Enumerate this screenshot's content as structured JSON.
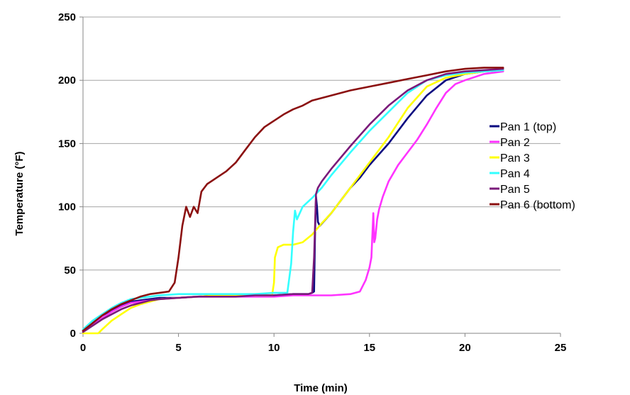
{
  "chart_data": {
    "type": "line",
    "title": "",
    "xlabel": "Time (min)",
    "ylabel": "Temperature (°F)",
    "xlim": [
      0,
      25
    ],
    "ylim": [
      0,
      250
    ],
    "xticks": [
      0,
      5,
      10,
      15,
      20,
      25
    ],
    "yticks": [
      0,
      50,
      100,
      150,
      200,
      250
    ],
    "grid": "horizontal",
    "legend": "right",
    "series": [
      {
        "name": "Pan 1 (top)",
        "color": "#0a0a80",
        "x": [
          0,
          0.5,
          1,
          1.5,
          2,
          2.5,
          3,
          3.5,
          4,
          5,
          6,
          7,
          8,
          9,
          10,
          11,
          11.8,
          12.0,
          12.1,
          12.15,
          12.2,
          12.25,
          12.3,
          12.4,
          13,
          13.5,
          14,
          14.5,
          15,
          16,
          17,
          18,
          19,
          20,
          21,
          22
        ],
        "y": [
          2,
          8,
          14,
          18,
          22,
          25,
          26,
          27,
          28,
          28,
          29,
          30,
          30,
          30,
          30,
          31,
          31,
          32,
          33,
          80,
          108,
          100,
          88,
          85,
          95,
          105,
          115,
          123,
          133,
          150,
          170,
          188,
          200,
          205,
          207,
          208
        ]
      },
      {
        "name": "Pan 2",
        "color": "#ff33ff",
        "x": [
          0,
          0.5,
          1,
          1.5,
          2,
          2.5,
          3,
          3.5,
          4,
          5,
          6,
          7,
          8,
          9,
          10,
          11,
          12,
          13,
          14,
          14.5,
          14.8,
          15.0,
          15.1,
          15.2,
          15.25,
          15.3,
          15.4,
          15.5,
          15.7,
          16,
          16.5,
          17,
          17.5,
          18,
          18.5,
          19,
          19.5,
          20,
          21,
          22
        ],
        "y": [
          2,
          7,
          12,
          17,
          21,
          24,
          25,
          26,
          27,
          28,
          29,
          29,
          29,
          29,
          29,
          30,
          30,
          30,
          31,
          33,
          42,
          52,
          60,
          95,
          72,
          75,
          90,
          98,
          108,
          120,
          133,
          143,
          153,
          165,
          178,
          190,
          197,
          200,
          205,
          207
        ]
      },
      {
        "name": "Pan 3",
        "color": "#ffff00",
        "x": [
          0,
          0.5,
          0.8,
          1,
          1.5,
          2,
          2.5,
          3,
          3.5,
          4,
          5,
          6,
          7,
          8,
          9,
          9.9,
          10.0,
          10.05,
          10.2,
          10.5,
          11,
          11.5,
          12,
          12.5,
          13,
          14,
          15,
          16,
          17,
          18,
          19,
          20,
          21,
          22
        ],
        "y": [
          0,
          0,
          0,
          3,
          10,
          15,
          20,
          23,
          25,
          27,
          28,
          29,
          30,
          30,
          30,
          30,
          40,
          60,
          68,
          70,
          70,
          72,
          78,
          87,
          95,
          115,
          135,
          155,
          178,
          195,
          202,
          205,
          207,
          208
        ]
      },
      {
        "name": "Pan 4",
        "color": "#33ffff",
        "x": [
          0,
          0.5,
          1,
          1.5,
          2,
          2.5,
          3,
          3.5,
          4,
          5,
          6,
          7,
          8,
          9,
          10,
          10.7,
          10.9,
          11.0,
          11.1,
          11.2,
          11.5,
          12,
          12.5,
          13,
          14,
          15,
          16,
          17,
          18,
          19,
          20,
          21,
          22
        ],
        "y": [
          3,
          10,
          15,
          20,
          24,
          27,
          28,
          29,
          30,
          31,
          31,
          31,
          31,
          31,
          32,
          32,
          55,
          80,
          97,
          90,
          100,
          107,
          115,
          125,
          143,
          160,
          175,
          190,
          200,
          204,
          206,
          207,
          208
        ]
      },
      {
        "name": "Pan 5",
        "color": "#7a1a7a",
        "x": [
          0,
          0.5,
          1,
          1.5,
          2,
          2.5,
          3,
          3.5,
          4,
          5,
          6,
          7,
          8,
          9,
          10,
          11,
          11.8,
          12.0,
          12.1,
          12.2,
          12.3,
          12.5,
          13,
          14,
          15,
          16,
          17,
          18,
          19,
          20,
          21,
          22
        ],
        "y": [
          1,
          6,
          11,
          15,
          19,
          22,
          24,
          26,
          27,
          28,
          29,
          29,
          29,
          30,
          30,
          31,
          31,
          32,
          60,
          110,
          115,
          120,
          130,
          148,
          165,
          180,
          192,
          200,
          205,
          207,
          208,
          209
        ]
      },
      {
        "name": "Pan 6 (bottom)",
        "color": "#8b1010",
        "x": [
          0,
          0.5,
          1,
          1.5,
          2,
          2.5,
          3,
          3.5,
          4,
          4.5,
          4.8,
          5.0,
          5.2,
          5.4,
          5.6,
          5.8,
          6.0,
          6.2,
          6.5,
          7,
          7.5,
          8,
          8.5,
          9,
          9.5,
          10,
          10.5,
          11,
          11.5,
          12,
          13,
          14,
          15,
          16,
          17,
          18,
          19,
          20,
          21,
          22
        ],
        "y": [
          2,
          8,
          14,
          19,
          23,
          26,
          29,
          31,
          32,
          33,
          40,
          60,
          85,
          100,
          92,
          100,
          95,
          112,
          118,
          123,
          128,
          135,
          145,
          155,
          163,
          168,
          173,
          177,
          180,
          184,
          188,
          192,
          195,
          198,
          201,
          204,
          207,
          209,
          210,
          210
        ]
      }
    ]
  }
}
